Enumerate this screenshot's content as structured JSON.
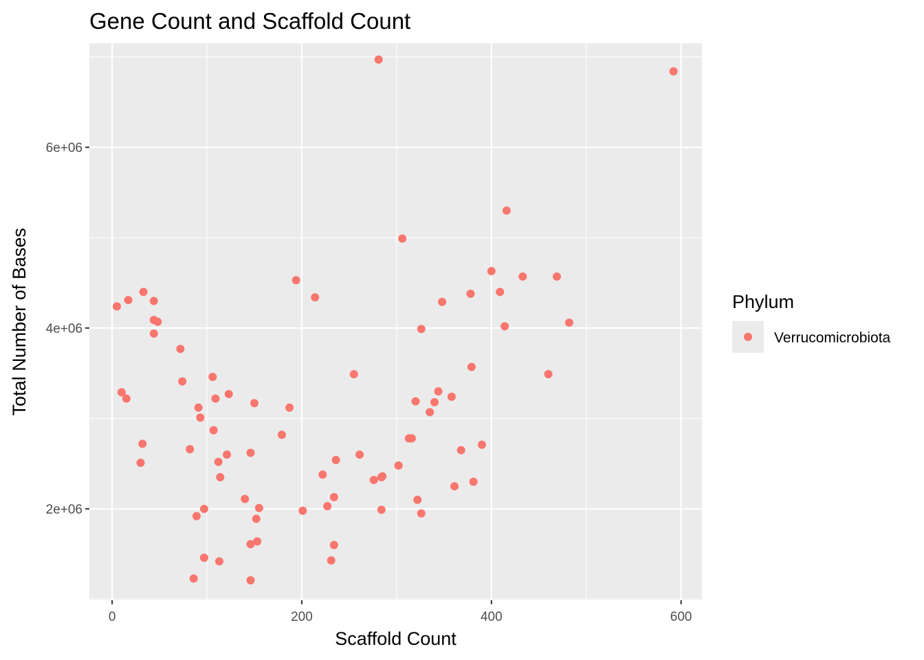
{
  "chart_data": {
    "type": "scatter",
    "title": "Gene Count and Scaffold Count",
    "xlabel": "Scaffold Count",
    "ylabel": "Total Number of Bases",
    "xlim": [
      -24,
      622
    ],
    "ylim": [
      990000,
      7150000
    ],
    "x_ticks": [
      0,
      200,
      400,
      600
    ],
    "x_tick_labels": [
      "0",
      "200",
      "400",
      "600"
    ],
    "y_ticks": [
      2000000,
      4000000,
      6000000
    ],
    "y_tick_labels": [
      "2e+06",
      "4e+06",
      "6e+06"
    ],
    "grid": true,
    "legend": {
      "title": "Phylum",
      "position": "right"
    },
    "series": [
      {
        "name": "Verrucomicrobiota",
        "color": "#F8766D",
        "points": [
          [
            5,
            4240000
          ],
          [
            17,
            4310000
          ],
          [
            33,
            4400000
          ],
          [
            44,
            4300000
          ],
          [
            44,
            4090000
          ],
          [
            48,
            4070000
          ],
          [
            44,
            3940000
          ],
          [
            10,
            3290000
          ],
          [
            15,
            3220000
          ],
          [
            72,
            3770000
          ],
          [
            74,
            3410000
          ],
          [
            32,
            2720000
          ],
          [
            30,
            2510000
          ],
          [
            82,
            2660000
          ],
          [
            91,
            3120000
          ],
          [
            93,
            3010000
          ],
          [
            106,
            3460000
          ],
          [
            109,
            3220000
          ],
          [
            107,
            2870000
          ],
          [
            112,
            2520000
          ],
          [
            114,
            2350000
          ],
          [
            121,
            2600000
          ],
          [
            123,
            3270000
          ],
          [
            146,
            2620000
          ],
          [
            150,
            3170000
          ],
          [
            179,
            2820000
          ],
          [
            187,
            3120000
          ],
          [
            140,
            2110000
          ],
          [
            155,
            2010000
          ],
          [
            152,
            1890000
          ],
          [
            97,
            2000000
          ],
          [
            89,
            1920000
          ],
          [
            146,
            1610000
          ],
          [
            153,
            1640000
          ],
          [
            97,
            1460000
          ],
          [
            113,
            1420000
          ],
          [
            86,
            1230000
          ],
          [
            146,
            1210000
          ],
          [
            194,
            4530000
          ],
          [
            214,
            4340000
          ],
          [
            201,
            1980000
          ],
          [
            222,
            2380000
          ],
          [
            227,
            2030000
          ],
          [
            234,
            2130000
          ],
          [
            236,
            2540000
          ],
          [
            234,
            1600000
          ],
          [
            231,
            1430000
          ],
          [
            255,
            3490000
          ],
          [
            261,
            2600000
          ],
          [
            276,
            2320000
          ],
          [
            284,
            2350000
          ],
          [
            285,
            2360000
          ],
          [
            284,
            1990000
          ],
          [
            281,
            6970000
          ],
          [
            306,
            4990000
          ],
          [
            302,
            2480000
          ],
          [
            313,
            2780000
          ],
          [
            316,
            2780000
          ],
          [
            320,
            3190000
          ],
          [
            322,
            2100000
          ],
          [
            326,
            3990000
          ],
          [
            326,
            1950000
          ],
          [
            335,
            3070000
          ],
          [
            340,
            3180000
          ],
          [
            344,
            3300000
          ],
          [
            348,
            4290000
          ],
          [
            358,
            3240000
          ],
          [
            361,
            2250000
          ],
          [
            368,
            2650000
          ],
          [
            378,
            4380000
          ],
          [
            379,
            3570000
          ],
          [
            381,
            2300000
          ],
          [
            390,
            2710000
          ],
          [
            400,
            4630000
          ],
          [
            409,
            4400000
          ],
          [
            414,
            4020000
          ],
          [
            416,
            5300000
          ],
          [
            433,
            4570000
          ],
          [
            460,
            3490000
          ],
          [
            469,
            4570000
          ],
          [
            482,
            4060000
          ],
          [
            592,
            6840000
          ]
        ]
      }
    ]
  }
}
